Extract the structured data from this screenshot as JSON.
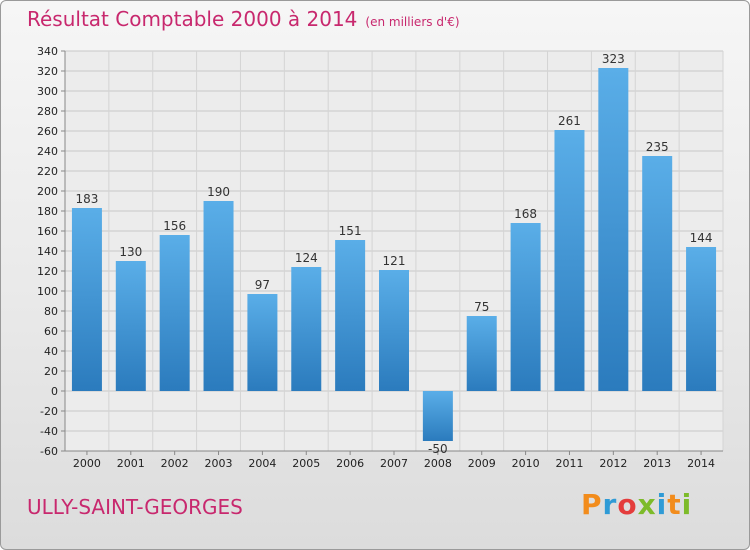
{
  "title": "Résultat Comptable 2000 à 2014",
  "subtitle": "(en milliers d'€)",
  "commune": "ULLY-SAINT-GEORGES",
  "brand": {
    "letters": [
      "P",
      "r",
      "o",
      "x",
      "i",
      "t",
      "i"
    ],
    "colors": [
      "#f28c1c",
      "#2f9bd6",
      "#e43c3c",
      "#7dbb2a",
      "#2f9bd6",
      "#f28c1c",
      "#7dbb2a"
    ]
  },
  "colors": {
    "bar_light": "#5aaee8",
    "bar_dark": "#2b7bbd",
    "title": "#c8286e"
  },
  "chart_data": {
    "type": "bar",
    "categories": [
      "2000",
      "2001",
      "2002",
      "2003",
      "2004",
      "2005",
      "2006",
      "2007",
      "2008",
      "2009",
      "2010",
      "2011",
      "2012",
      "2013",
      "2014"
    ],
    "values": [
      183,
      130,
      156,
      190,
      97,
      124,
      151,
      121,
      -50,
      75,
      168,
      261,
      323,
      235,
      144
    ],
    "title": "Résultat Comptable 2000 à 2014",
    "ylabel": "en milliers d'€",
    "ylim": [
      -60,
      340
    ],
    "yticks": [
      -60,
      -40,
      -20,
      0,
      20,
      40,
      60,
      80,
      100,
      120,
      140,
      160,
      180,
      200,
      220,
      240,
      260,
      280,
      300,
      320,
      340
    ],
    "grid": true
  }
}
